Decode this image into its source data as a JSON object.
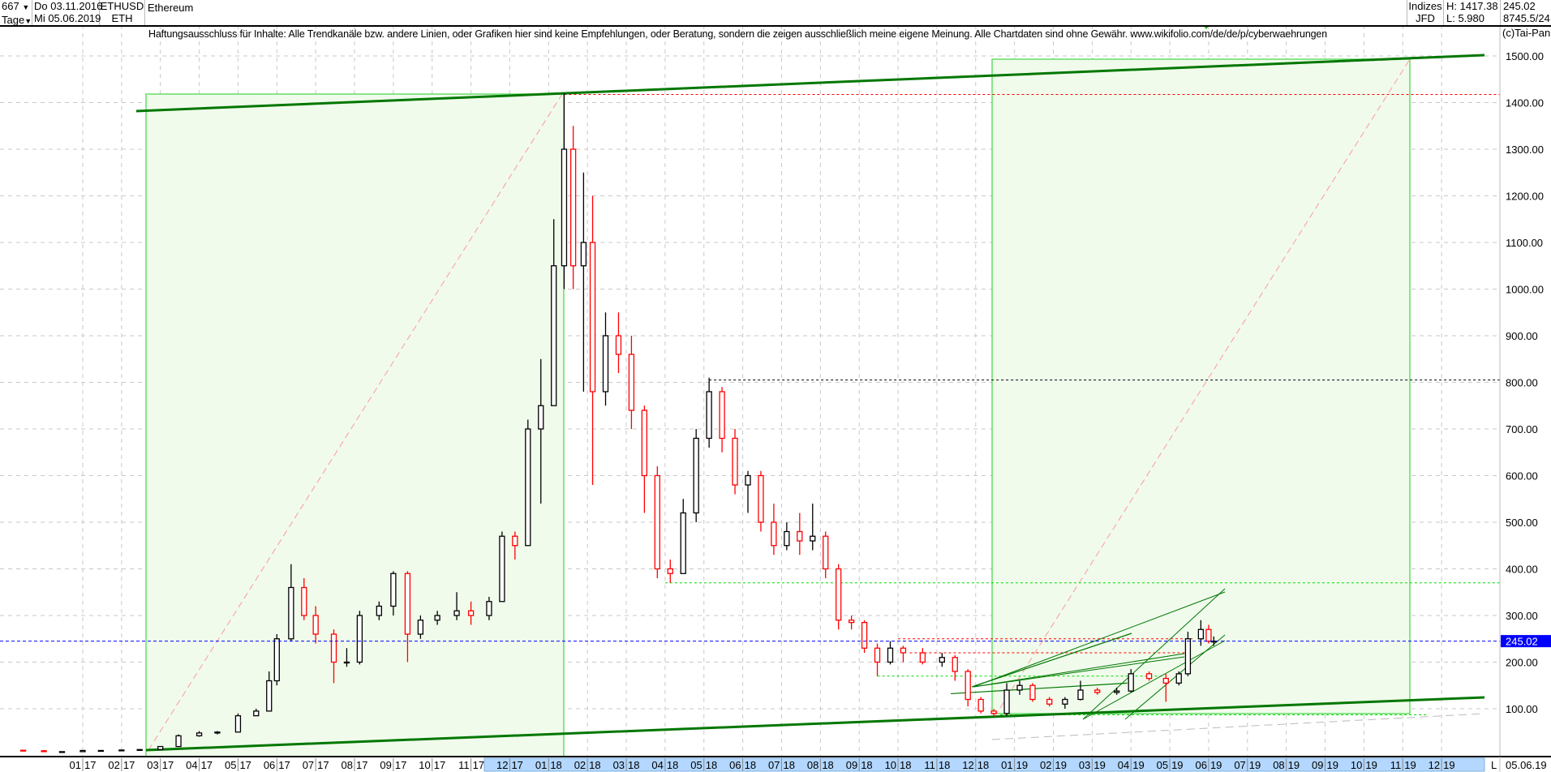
{
  "header": {
    "bar_count": "667",
    "period": "Tage",
    "date_from": "Do 03.11.2016",
    "date_to": "Mi 05.06.2019",
    "symbol": "ETHUSD",
    "symbol_short": "ETH",
    "name": "Ethereum",
    "exchange_group": "Indizes",
    "exchange": "JFD",
    "high": "H: 1417.38",
    "low": "L: 5.980",
    "last": "245.02",
    "volume_info": "8745.5/24"
  },
  "disclaimer": "Haftungsausschluss für Inhalte: Alle Trendkanäle bzw. andere Linien, oder Grafiken hier sind keine Empfehlungen, oder Beratung, sondern die zeigen ausschließlich meine eigene Meinung. Alle Chartdaten sind ohne Gewähr.  www.wikifolio.com/de/de/p/cyberwaehrungen",
  "copyright": "(c)Tai-Pan",
  "footer": {
    "scale_button": "L",
    "last_date": "05.06.19"
  },
  "colors": {
    "up": "#000000",
    "down": "#ff0000",
    "last_price": "#0000ff",
    "channel": "#007700",
    "box_fill": "#f0fbec",
    "box_border": "#66dd66",
    "axis_highlight": "#b3d7ff"
  },
  "chart_data": {
    "type": "candlestick",
    "title": "Ethereum",
    "ylim": [
      0,
      1550
    ],
    "y_ticks": [
      "100.00",
      "200.00",
      "300.00",
      "400.00",
      "500.00",
      "600.00",
      "700.00",
      "800.00",
      "900.00",
      "1000.00",
      "1100.00",
      "1200.00",
      "1300.00",
      "1400.00",
      "1500.00"
    ],
    "x_ticks": [
      "01 17",
      "02 17",
      "03 17",
      "04 17",
      "05 17",
      "06 17",
      "07 17",
      "08 17",
      "09 17",
      "10 17",
      "11 17",
      "12 17",
      "01 18",
      "02 18",
      "03 18",
      "04 18",
      "05 18",
      "06 18",
      "07 18",
      "08 18",
      "09 18",
      "10 18",
      "11 18",
      "12 18",
      "01 19",
      "02 19",
      "03 19",
      "04 19",
      "05 19",
      "06 19",
      "07 19",
      "08 19",
      "09 19",
      "10 19",
      "11 19",
      "12 19"
    ],
    "grid": true,
    "last_price": 245.02,
    "levels": [
      {
        "price": 1417.38,
        "color": "#ff0000",
        "from": "2018-01-13"
      },
      {
        "price": 805,
        "color": "#000000",
        "from": "2018-05-05"
      },
      {
        "price": 370,
        "color": "#00dd00",
        "from": "2018-04-01"
      },
      {
        "price": 250,
        "color": "#ff0000",
        "from": "2018-10-01",
        "to": "2019-05-20"
      },
      {
        "price": 220,
        "color": "#ff0000",
        "from": "2018-10-10",
        "to": "2019-05-17"
      },
      {
        "price": 170,
        "color": "#00dd00",
        "from": "2018-09-15",
        "to": "2019-04-25"
      },
      {
        "price": 87,
        "color": "#00dd00",
        "from": "2018-12-20",
        "to": "2019-11-20"
      }
    ],
    "candles": [
      [
        "2016-11-15",
        11,
        11.5,
        9.5,
        10
      ],
      [
        "2016-12-01",
        10,
        10,
        7,
        8
      ],
      [
        "2016-12-15",
        8,
        8.5,
        7.5,
        8
      ],
      [
        "2017-01-01",
        8,
        11,
        8,
        10.5
      ],
      [
        "2017-01-15",
        10.5,
        11,
        10,
        10.5
      ],
      [
        "2017-02-01",
        10.5,
        12,
        10.5,
        11.5
      ],
      [
        "2017-02-15",
        11.5,
        13,
        11,
        12.5
      ],
      [
        "2017-03-01",
        12.5,
        20,
        12.5,
        19
      ],
      [
        "2017-03-15",
        19,
        45,
        19,
        42
      ],
      [
        "2017-04-01",
        42,
        52,
        40,
        48
      ],
      [
        "2017-04-15",
        48,
        52,
        45,
        50
      ],
      [
        "2017-05-01",
        50,
        90,
        50,
        85
      ],
      [
        "2017-05-15",
        85,
        100,
        85,
        95
      ],
      [
        "2017-05-25",
        95,
        180,
        95,
        160
      ],
      [
        "2017-06-01",
        160,
        260,
        150,
        250
      ],
      [
        "2017-06-12",
        250,
        410,
        245,
        360
      ],
      [
        "2017-06-22",
        360,
        380,
        290,
        300
      ],
      [
        "2017-07-01",
        300,
        320,
        240,
        260
      ],
      [
        "2017-07-15",
        260,
        270,
        155,
        200
      ],
      [
        "2017-07-25",
        200,
        230,
        190,
        200
      ],
      [
        "2017-08-05",
        200,
        310,
        195,
        300
      ],
      [
        "2017-08-20",
        300,
        330,
        290,
        320
      ],
      [
        "2017-09-01",
        320,
        395,
        300,
        390
      ],
      [
        "2017-09-12",
        390,
        395,
        200,
        260
      ],
      [
        "2017-09-22",
        260,
        300,
        250,
        290
      ],
      [
        "2017-10-05",
        290,
        310,
        280,
        300
      ],
      [
        "2017-10-20",
        300,
        350,
        290,
        310
      ],
      [
        "2017-11-01",
        310,
        330,
        280,
        300
      ],
      [
        "2017-11-15",
        300,
        340,
        290,
        330
      ],
      [
        "2017-11-25",
        330,
        480,
        330,
        470
      ],
      [
        "2017-12-05",
        470,
        480,
        420,
        450
      ],
      [
        "2017-12-15",
        450,
        720,
        450,
        700
      ],
      [
        "2017-12-25",
        700,
        850,
        540,
        750
      ],
      [
        "2018-01-05",
        750,
        1150,
        750,
        1050
      ],
      [
        "2018-01-13",
        1050,
        1420,
        1000,
        1300
      ],
      [
        "2018-01-20",
        1300,
        1350,
        1000,
        1050
      ],
      [
        "2018-01-28",
        1050,
        1250,
        780,
        1100
      ],
      [
        "2018-02-05",
        1100,
        1200,
        580,
        780
      ],
      [
        "2018-02-15",
        780,
        950,
        750,
        900
      ],
      [
        "2018-02-25",
        900,
        950,
        820,
        860
      ],
      [
        "2018-03-05",
        860,
        900,
        700,
        740
      ],
      [
        "2018-03-15",
        740,
        750,
        520,
        600
      ],
      [
        "2018-03-25",
        600,
        620,
        380,
        400
      ],
      [
        "2018-04-05",
        400,
        420,
        370,
        390
      ],
      [
        "2018-04-15",
        390,
        550,
        390,
        520
      ],
      [
        "2018-04-25",
        520,
        700,
        500,
        680
      ],
      [
        "2018-05-05",
        680,
        810,
        660,
        780
      ],
      [
        "2018-05-15",
        780,
        790,
        650,
        680
      ],
      [
        "2018-05-25",
        680,
        700,
        560,
        580
      ],
      [
        "2018-06-05",
        580,
        610,
        520,
        600
      ],
      [
        "2018-06-15",
        600,
        610,
        480,
        500
      ],
      [
        "2018-06-25",
        500,
        540,
        430,
        450
      ],
      [
        "2018-07-05",
        450,
        500,
        440,
        480
      ],
      [
        "2018-07-15",
        480,
        520,
        430,
        460
      ],
      [
        "2018-07-25",
        460,
        540,
        440,
        470
      ],
      [
        "2018-08-05",
        470,
        480,
        380,
        400
      ],
      [
        "2018-08-15",
        400,
        410,
        270,
        290
      ],
      [
        "2018-08-25",
        290,
        300,
        270,
        285
      ],
      [
        "2018-09-05",
        285,
        290,
        220,
        230
      ],
      [
        "2018-09-15",
        230,
        240,
        170,
        200
      ],
      [
        "2018-09-25",
        200,
        245,
        195,
        230
      ],
      [
        "2018-10-05",
        230,
        235,
        200,
        220
      ],
      [
        "2018-10-20",
        220,
        230,
        195,
        200
      ],
      [
        "2018-11-05",
        200,
        220,
        190,
        210
      ],
      [
        "2018-11-15",
        210,
        215,
        160,
        180
      ],
      [
        "2018-11-25",
        180,
        185,
        105,
        120
      ],
      [
        "2018-12-05",
        120,
        125,
        90,
        95
      ],
      [
        "2018-12-15",
        95,
        100,
        83,
        90
      ],
      [
        "2018-12-25",
        90,
        155,
        85,
        140
      ],
      [
        "2019-01-05",
        140,
        160,
        130,
        150
      ],
      [
        "2019-01-15",
        150,
        155,
        115,
        120
      ],
      [
        "2019-01-28",
        120,
        125,
        105,
        110
      ],
      [
        "2019-02-10",
        110,
        125,
        100,
        120
      ],
      [
        "2019-02-22",
        120,
        160,
        118,
        140
      ],
      [
        "2019-03-05",
        140,
        145,
        130,
        135
      ],
      [
        "2019-03-20",
        135,
        145,
        130,
        138
      ],
      [
        "2019-04-01",
        138,
        185,
        135,
        175
      ],
      [
        "2019-04-15",
        175,
        180,
        160,
        165
      ],
      [
        "2019-04-28",
        165,
        175,
        115,
        155
      ],
      [
        "2019-05-08",
        155,
        180,
        150,
        175
      ],
      [
        "2019-05-15",
        175,
        265,
        170,
        250
      ],
      [
        "2019-05-25",
        250,
        290,
        235,
        270
      ],
      [
        "2019-06-01",
        270,
        280,
        240,
        245
      ],
      [
        "2019-06-05",
        245,
        255,
        235,
        245.02
      ]
    ]
  }
}
